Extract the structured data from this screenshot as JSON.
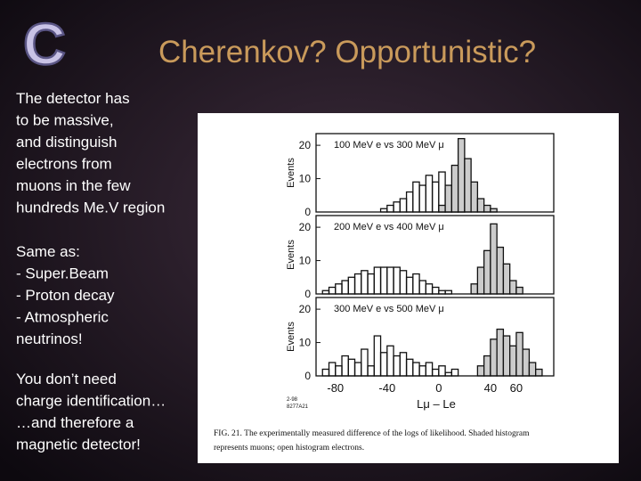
{
  "slide": {
    "logo": "C",
    "title": "Cherenkov? Opportunistic?",
    "body": [
      [
        "The detector has",
        "to be massive,",
        "and distinguish",
        "electrons from",
        "muons in the few",
        "hundreds Me.V region"
      ],
      [
        "Same as:",
        "- Super.Beam",
        "- Proton decay",
        "- Atmospheric",
        "neutrinos!"
      ],
      [
        "You don’t need",
        "charge identification…",
        "…and therefore a",
        "magnetic detector!"
      ]
    ]
  },
  "figure": {
    "caption": [
      "FIG. 21.  The experimentally measured difference of the logs of likelihood.   Shaded histogram",
      "represents muons; open histogram electrons."
    ],
    "code": [
      "2-98",
      "8277A21"
    ],
    "y_label": "Events",
    "x_label": "Lμ – Le"
  },
  "chart_data": [
    {
      "type": "histogram",
      "title": "100 MeV e vs 300 MeV μ",
      "xlim": [
        -95,
        89
      ],
      "ylim": [
        0,
        23.5
      ],
      "yticks": [
        0,
        10,
        20
      ],
      "series": [
        {
          "color": "none",
          "bins": [
            -90,
            -85,
            -80,
            -75,
            -70,
            -65,
            -60,
            -55,
            -50,
            -45,
            -40,
            -35,
            -30,
            -25,
            -20,
            -15,
            -10,
            -5,
            0,
            5,
            10,
            15,
            20
          ],
          "values": [
            0,
            0,
            0,
            0,
            0,
            0,
            0,
            0,
            0,
            1,
            2,
            3,
            4,
            6,
            9,
            8,
            11,
            9,
            12,
            7,
            3,
            1
          ]
        },
        {
          "color": "#cccccc",
          "bins": [
            0,
            5,
            10,
            15,
            20,
            25,
            30,
            35,
            40,
            45,
            50,
            55,
            60,
            65,
            70,
            75,
            80,
            85
          ],
          "values": [
            2,
            8,
            14,
            22,
            16,
            9,
            4,
            2,
            1,
            0,
            0,
            0,
            0,
            0,
            0,
            0,
            0
          ]
        }
      ]
    },
    {
      "type": "histogram",
      "title": "200 MeV e vs 400 MeV μ",
      "xlim": [
        -95,
        89
      ],
      "ylim": [
        0,
        23.5
      ],
      "yticks": [
        0,
        10,
        20
      ],
      "series": [
        {
          "color": "none",
          "bins": [
            -90,
            -85,
            -80,
            -75,
            -70,
            -65,
            -60,
            -55,
            -50,
            -45,
            -40,
            -35,
            -30,
            -25,
            -20,
            -15,
            -10,
            -5,
            0,
            5,
            10,
            15,
            20
          ],
          "values": [
            1,
            2,
            3,
            4,
            5,
            6,
            7,
            6,
            8,
            8,
            8,
            8,
            7,
            5,
            6,
            4,
            3,
            2,
            1,
            1,
            0,
            0
          ]
        },
        {
          "color": "#cccccc",
          "bins": [
            0,
            5,
            10,
            15,
            20,
            25,
            30,
            35,
            40,
            45,
            50,
            55,
            60,
            65,
            70,
            75,
            80,
            85
          ],
          "values": [
            0,
            0,
            0,
            0,
            0,
            3,
            8,
            13,
            21,
            14,
            9,
            4,
            2,
            0,
            0,
            0,
            0
          ]
        }
      ]
    },
    {
      "type": "histogram",
      "title": "300 MeV e vs 500 MeV μ",
      "xlim": [
        -95,
        89
      ],
      "ylim": [
        0,
        23.5
      ],
      "yticks": [
        0,
        10,
        20
      ],
      "xticks": [
        -80,
        -40,
        0,
        40,
        60
      ],
      "series": [
        {
          "color": "none",
          "bins": [
            -90,
            -85,
            -80,
            -75,
            -70,
            -65,
            -60,
            -55,
            -50,
            -45,
            -40,
            -35,
            -30,
            -25,
            -20,
            -15,
            -10,
            -5,
            0,
            5,
            10,
            15,
            20
          ],
          "values": [
            2,
            4,
            3,
            6,
            5,
            4,
            8,
            3,
            12,
            7,
            9,
            6,
            7,
            5,
            4,
            3,
            4,
            2,
            3,
            1,
            2,
            0
          ]
        },
        {
          "color": "#cccccc",
          "bins": [
            0,
            5,
            10,
            15,
            20,
            25,
            30,
            35,
            40,
            45,
            50,
            55,
            60,
            65,
            70,
            75,
            80,
            85
          ],
          "values": [
            0,
            0,
            0,
            0,
            0,
            0,
            3,
            6,
            11,
            14,
            12,
            9,
            13,
            8,
            4,
            2,
            0
          ]
        }
      ]
    }
  ]
}
